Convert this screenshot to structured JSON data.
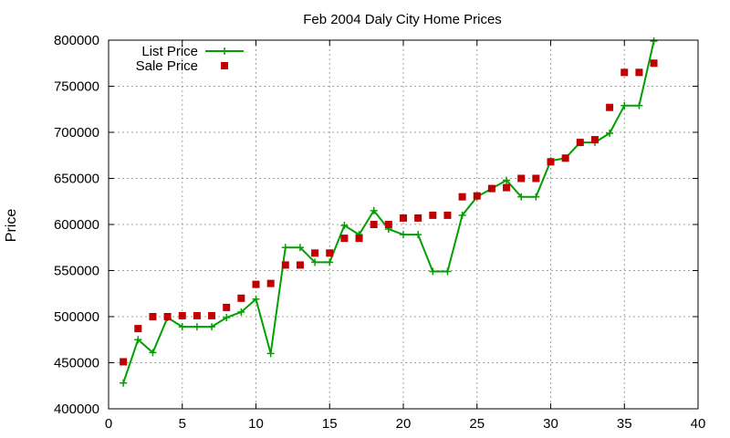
{
  "chart_data": {
    "type": "line",
    "title": "Feb 2004 Daly City Home Prices",
    "xlabel": "",
    "ylabel": "Price",
    "xlim": [
      0,
      40
    ],
    "ylim": [
      400000,
      800000
    ],
    "xticks": [
      0,
      5,
      10,
      15,
      20,
      25,
      30,
      35,
      40
    ],
    "yticks": [
      400000,
      450000,
      500000,
      550000,
      600000,
      650000,
      700000,
      750000,
      800000
    ],
    "grid": true,
    "legend_position": "top-left",
    "series": [
      {
        "name": "List Price",
        "style": "line-plus",
        "color": "#00a000",
        "x": [
          1,
          2,
          3,
          4,
          5,
          6,
          7,
          8,
          9,
          10,
          11,
          12,
          13,
          14,
          15,
          16,
          17,
          18,
          19,
          20,
          21,
          22,
          23,
          24,
          25,
          26,
          27,
          28,
          29,
          30,
          31,
          32,
          33,
          34,
          35,
          36,
          37
        ],
        "y": [
          428000,
          475000,
          461000,
          499000,
          489000,
          489000,
          489000,
          499000,
          505000,
          519000,
          460000,
          575000,
          575000,
          559000,
          559000,
          599000,
          589000,
          615000,
          595000,
          589000,
          589000,
          549000,
          549000,
          610000,
          630000,
          639000,
          648000,
          630000,
          630000,
          669000,
          672000,
          689000,
          689000,
          699000,
          729000,
          729000,
          799000
        ]
      },
      {
        "name": "Sale Price",
        "style": "square-markers",
        "color": "#c00000",
        "x": [
          1,
          2,
          3,
          4,
          5,
          6,
          7,
          8,
          9,
          10,
          11,
          12,
          13,
          14,
          15,
          16,
          17,
          18,
          19,
          20,
          21,
          22,
          23,
          24,
          25,
          26,
          27,
          28,
          29,
          30,
          31,
          32,
          33,
          34,
          35,
          36,
          37
        ],
        "y": [
          451000,
          487000,
          500000,
          500000,
          501000,
          501000,
          501000,
          510000,
          520000,
          535000,
          536000,
          556000,
          556000,
          569000,
          569000,
          585000,
          585000,
          600000,
          600000,
          607000,
          607000,
          610000,
          610000,
          630000,
          631000,
          639000,
          640000,
          650000,
          650000,
          668000,
          672000,
          689000,
          692000,
          727000,
          765000,
          765000,
          775000
        ]
      }
    ]
  }
}
